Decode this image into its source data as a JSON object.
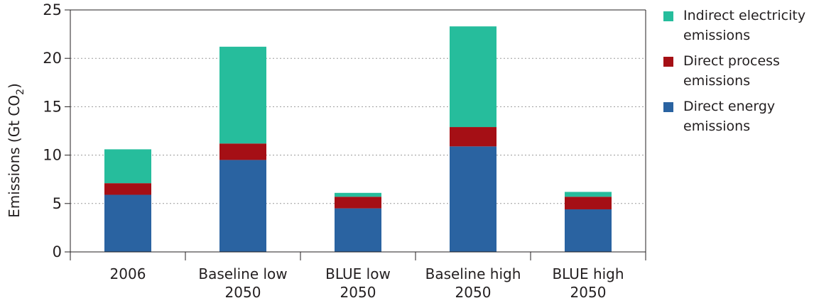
{
  "chart_data": {
    "type": "bar",
    "stacked": true,
    "ylabel": "Emissions (Gt CO",
    "ylabel_sub": "2",
    "ylabel_close": ")",
    "ylim": [
      0,
      25
    ],
    "yticks": [
      0,
      5,
      10,
      15,
      20,
      25
    ],
    "grid": true,
    "legend_position": "right",
    "categories": [
      [
        "2006"
      ],
      [
        "Baseline low",
        "2050"
      ],
      [
        "BLUE low",
        "2050"
      ],
      [
        "Baseline high",
        "2050"
      ],
      [
        "BLUE high",
        "2050"
      ]
    ],
    "series": [
      {
        "name": "Direct energy emissions",
        "legend_lines": [
          "Direct energy",
          "emissions"
        ],
        "color": "#2a63a1",
        "values": [
          5.9,
          9.5,
          4.5,
          10.9,
          4.4
        ]
      },
      {
        "name": "Direct process emissions",
        "legend_lines": [
          "Direct process",
          "emissions"
        ],
        "color": "#a50f15",
        "values": [
          1.2,
          1.7,
          1.2,
          2.0,
          1.3
        ]
      },
      {
        "name": "Indirect electricity emissions",
        "legend_lines": [
          "Indirect electricity",
          "emissions"
        ],
        "color": "#26bd9c",
        "values": [
          3.5,
          10.0,
          0.4,
          10.4,
          0.5
        ]
      }
    ],
    "legend_order": [
      2,
      1,
      0
    ]
  }
}
